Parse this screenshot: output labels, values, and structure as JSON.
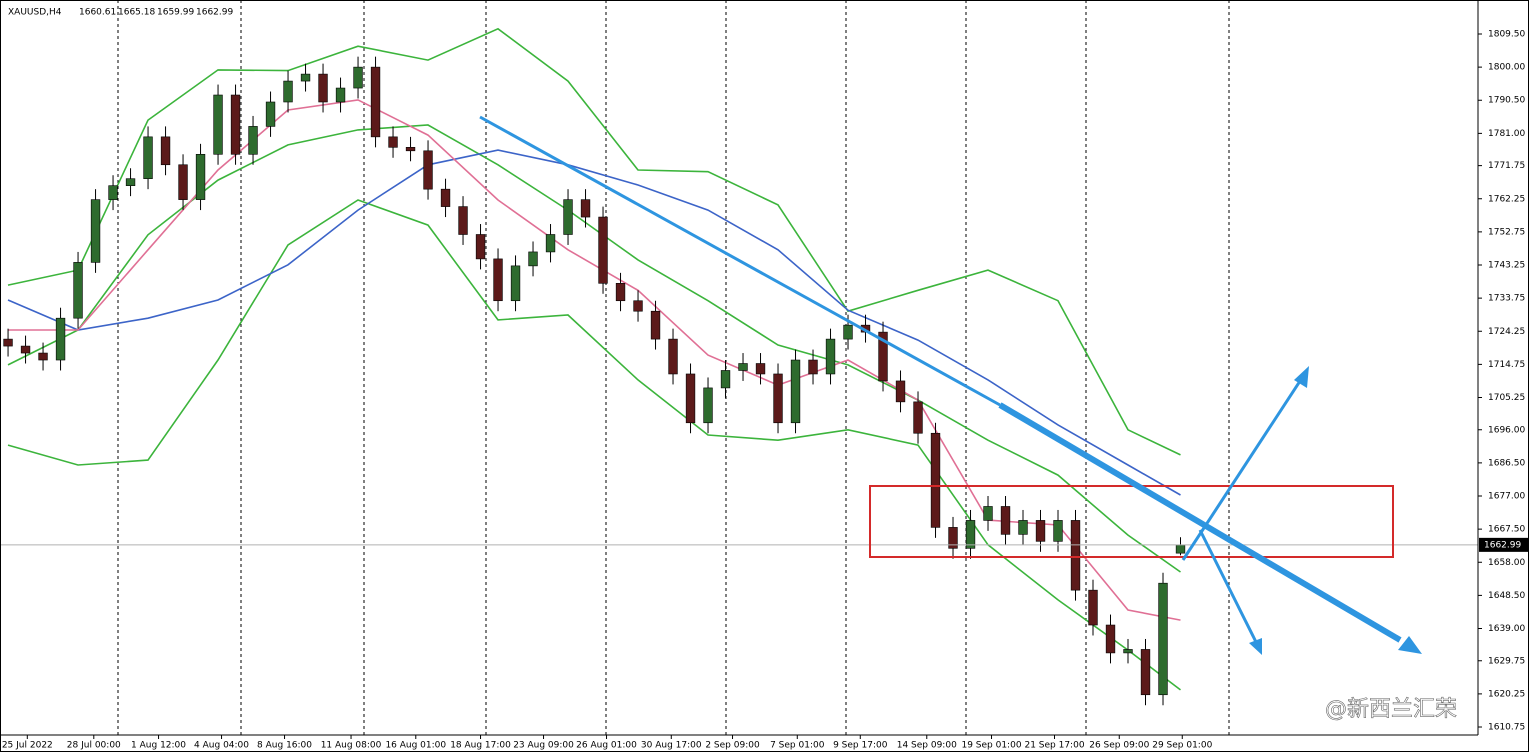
{
  "chart_data": {
    "type": "candlestick",
    "title": "XAUUSD,H4",
    "watermark": "@新西兰汇荣",
    "up_color": "#2e6b2e",
    "down_color": "#5c1a1a",
    "open": [
      1722,
      1720,
      1718,
      1716,
      1728,
      1744,
      1762,
      1766,
      1768,
      1780,
      1772,
      1762,
      1775,
      1792,
      1775,
      1783,
      1790,
      1796,
      1798,
      1790,
      1794,
      1800,
      1780,
      1777,
      1776,
      1765,
      1760,
      1752,
      1745,
      1733,
      1743,
      1747,
      1752,
      1762,
      1757,
      1738,
      1733,
      1730,
      1722,
      1712,
      1698,
      1708,
      1713,
      1715,
      1712,
      1698,
      1716,
      1712,
      1722,
      1726,
      1724,
      1710,
      1704,
      1695,
      1668,
      1662,
      1670,
      1674,
      1666,
      1670,
      1664,
      1670,
      1650,
      1640,
      1632,
      1633,
      1620,
      1660.61
    ],
    "high": [
      1725,
      1723,
      1721,
      1731,
      1747,
      1765,
      1769,
      1771,
      1783,
      1783,
      1775,
      1778,
      1795,
      1795,
      1786,
      1793,
      1799,
      1801,
      1801,
      1797,
      1803,
      1803,
      1783,
      1780,
      1779,
      1768,
      1763,
      1755,
      1748,
      1746,
      1750,
      1755,
      1765,
      1765,
      1760,
      1741,
      1736,
      1733,
      1725,
      1715,
      1711,
      1716,
      1718,
      1718,
      1715,
      1719,
      1719,
      1725,
      1729,
      1729,
      1727,
      1713,
      1707,
      1698,
      1671,
      1673,
      1677,
      1677,
      1673,
      1673,
      1673,
      1673,
      1653,
      1643,
      1636,
      1636,
      1655,
      1665.18
    ],
    "low": [
      1717,
      1715,
      1713,
      1713,
      1725,
      1741,
      1759,
      1763,
      1765,
      1769,
      1759,
      1759,
      1772,
      1772,
      1772,
      1780,
      1787,
      1793,
      1787,
      1787,
      1791,
      1777,
      1774,
      1773,
      1762,
      1757,
      1749,
      1742,
      1730,
      1730,
      1740,
      1744,
      1749,
      1754,
      1735,
      1730,
      1727,
      1719,
      1709,
      1695,
      1695,
      1705,
      1710,
      1709,
      1695,
      1695,
      1709,
      1709,
      1719,
      1721,
      1707,
      1701,
      1692,
      1665,
      1659,
      1659,
      1667,
      1663,
      1663,
      1661,
      1661,
      1647,
      1637,
      1629,
      1629,
      1617,
      1617,
      1659.99
    ],
    "close": [
      1720,
      1718,
      1716,
      1728,
      1744,
      1762,
      1766,
      1768,
      1780,
      1772,
      1762,
      1775,
      1792,
      1775,
      1783,
      1790,
      1796,
      1798,
      1790,
      1794,
      1800,
      1780,
      1777,
      1776,
      1765,
      1760,
      1752,
      1745,
      1733,
      1743,
      1747,
      1752,
      1762,
      1757,
      1738,
      1733,
      1730,
      1722,
      1712,
      1698,
      1708,
      1713,
      1715,
      1712,
      1698,
      1716,
      1712,
      1722,
      1726,
      1724,
      1710,
      1704,
      1695,
      1668,
      1662,
      1670,
      1674,
      1666,
      1670,
      1664,
      1670,
      1650,
      1640,
      1632,
      1633,
      1620,
      1652,
      1662.99
    ],
    "series": [
      {
        "color": "#3cb43c",
        "x": [
          0,
          4,
          8,
          12,
          16,
          20,
          24,
          28,
          32,
          36,
          40,
          44,
          48,
          52,
          56,
          60,
          64,
          67
        ],
        "values": [
          1737.5,
          1741.8,
          1784.8,
          1799.2,
          1799,
          1806,
          1802,
          1811,
          1796,
          1770.5,
          1770,
          1760.5,
          1730,
          1736,
          1741.8,
          1733,
          1696,
          1688.8
        ]
      },
      {
        "color": "#3cb43c",
        "x": [
          0,
          4,
          8,
          12,
          16,
          20,
          24,
          28,
          32,
          36,
          40,
          44,
          48,
          52,
          56,
          60,
          64,
          67
        ],
        "values": [
          1714.6,
          1724.6,
          1751.9,
          1767.6,
          1777.7,
          1782,
          1783.4,
          1772,
          1759,
          1744.7,
          1733,
          1720.3,
          1714.6,
          1704.5,
          1693,
          1683,
          1665.8,
          1655.2
        ]
      },
      {
        "color": "#3cb43c",
        "x": [
          0,
          4,
          8,
          12,
          16,
          20,
          24,
          28,
          32,
          36,
          40,
          44,
          48,
          52,
          56,
          60,
          64,
          67
        ],
        "values": [
          1691.6,
          1685.9,
          1687.3,
          1716,
          1749,
          1761.9,
          1754.7,
          1727.5,
          1728.9,
          1710.3,
          1694.5,
          1693,
          1696,
          1691.6,
          1663,
          1647.2,
          1632.8,
          1621.4
        ]
      },
      {
        "color": "#3c64c8",
        "x": [
          0,
          4,
          8,
          12,
          16,
          20,
          24,
          28,
          32,
          36,
          40,
          44,
          48,
          52,
          56,
          60,
          64,
          67
        ],
        "values": [
          1733.2,
          1724.6,
          1728,
          1733.2,
          1743.3,
          1759,
          1772,
          1776.2,
          1772,
          1766.2,
          1759,
          1747.6,
          1730.3,
          1721.7,
          1710.3,
          1697.4,
          1685.9,
          1677.3
        ]
      },
      {
        "color": "#e07095",
        "x": [
          0,
          4,
          8,
          12,
          16,
          20,
          24,
          28,
          32,
          36,
          40,
          44,
          48,
          52,
          56,
          60,
          64,
          67
        ],
        "values": [
          1724.6,
          1724.6,
          1747.6,
          1770.5,
          1787.7,
          1790.6,
          1780.5,
          1761.9,
          1747.6,
          1736,
          1717.4,
          1708.8,
          1716,
          1704.5,
          1670.1,
          1668.7,
          1644.3,
          1641.4
        ]
      }
    ],
    "xlim": [
      -0.46,
      84
    ],
    "ylim": [
      1608.46,
      1819.25
    ],
    "xticks": [
      {
        "value": 1.1,
        "label": "25 Jul 2022"
      },
      {
        "value": 4.9,
        "label": "28 Jul 00:00"
      },
      {
        "value": 8.6,
        "label": "1 Aug 12:00"
      },
      {
        "value": 12.2,
        "label": "4 Aug 04:00"
      },
      {
        "value": 15.8,
        "label": "8 Aug 16:00"
      },
      {
        "value": 19.6,
        "label": "11 Aug 08:00"
      },
      {
        "value": 23.3,
        "label": "16 Aug 01:00"
      },
      {
        "value": 27,
        "label": "18 Aug 17:00"
      },
      {
        "value": 30.6,
        "label": "23 Aug 09:00"
      },
      {
        "value": 34.2,
        "label": "26 Aug 01:00"
      },
      {
        "value": 37.9,
        "label": "30 Aug 17:00"
      },
      {
        "value": 41.4,
        "label": "2 Sep 09:00"
      },
      {
        "value": 45.1,
        "label": "7 Sep 01:00"
      },
      {
        "value": 48.7,
        "label": "9 Sep 17:00"
      },
      {
        "value": 52.5,
        "label": "14 Sep 09:00"
      },
      {
        "value": 56.2,
        "label": "19 Sep 01:00"
      },
      {
        "value": 59.8,
        "label": "21 Sep 17:00"
      },
      {
        "value": 63.5,
        "label": "26 Sep 09:00"
      },
      {
        "value": 67.1,
        "label": "29 Sep 01:00"
      }
    ],
    "yticks": [
      {
        "value": 1809.5,
        "label": "1809.50"
      },
      {
        "value": 1800,
        "label": "1800.00"
      },
      {
        "value": 1790.5,
        "label": "1790.50"
      },
      {
        "value": 1781,
        "label": "1781.00"
      },
      {
        "value": 1771.75,
        "label": "1771.75"
      },
      {
        "value": 1762.25,
        "label": "1762.25"
      },
      {
        "value": 1752.75,
        "label": "1752.75"
      },
      {
        "value": 1743.25,
        "label": "1743.25"
      },
      {
        "value": 1733.75,
        "label": "1733.75"
      },
      {
        "value": 1724.25,
        "label": "1724.25"
      },
      {
        "value": 1714.75,
        "label": "1714.75"
      },
      {
        "value": 1705.25,
        "label": "1705.25"
      },
      {
        "value": 1696,
        "label": "1696.00"
      },
      {
        "value": 1686.5,
        "label": "1686.50"
      },
      {
        "value": 1677,
        "label": "1677.00"
      },
      {
        "value": 1667.5,
        "label": "1667.50"
      },
      {
        "value": 1658,
        "label": "1658.00"
      },
      {
        "value": 1648.5,
        "label": "1648.50"
      },
      {
        "value": 1639,
        "label": "1639.00"
      },
      {
        "value": 1629.75,
        "label": "1629.75"
      },
      {
        "value": 1620.25,
        "label": "1620.25"
      },
      {
        "value": 1610.75,
        "label": "1610.75"
      }
    ]
  }
}
